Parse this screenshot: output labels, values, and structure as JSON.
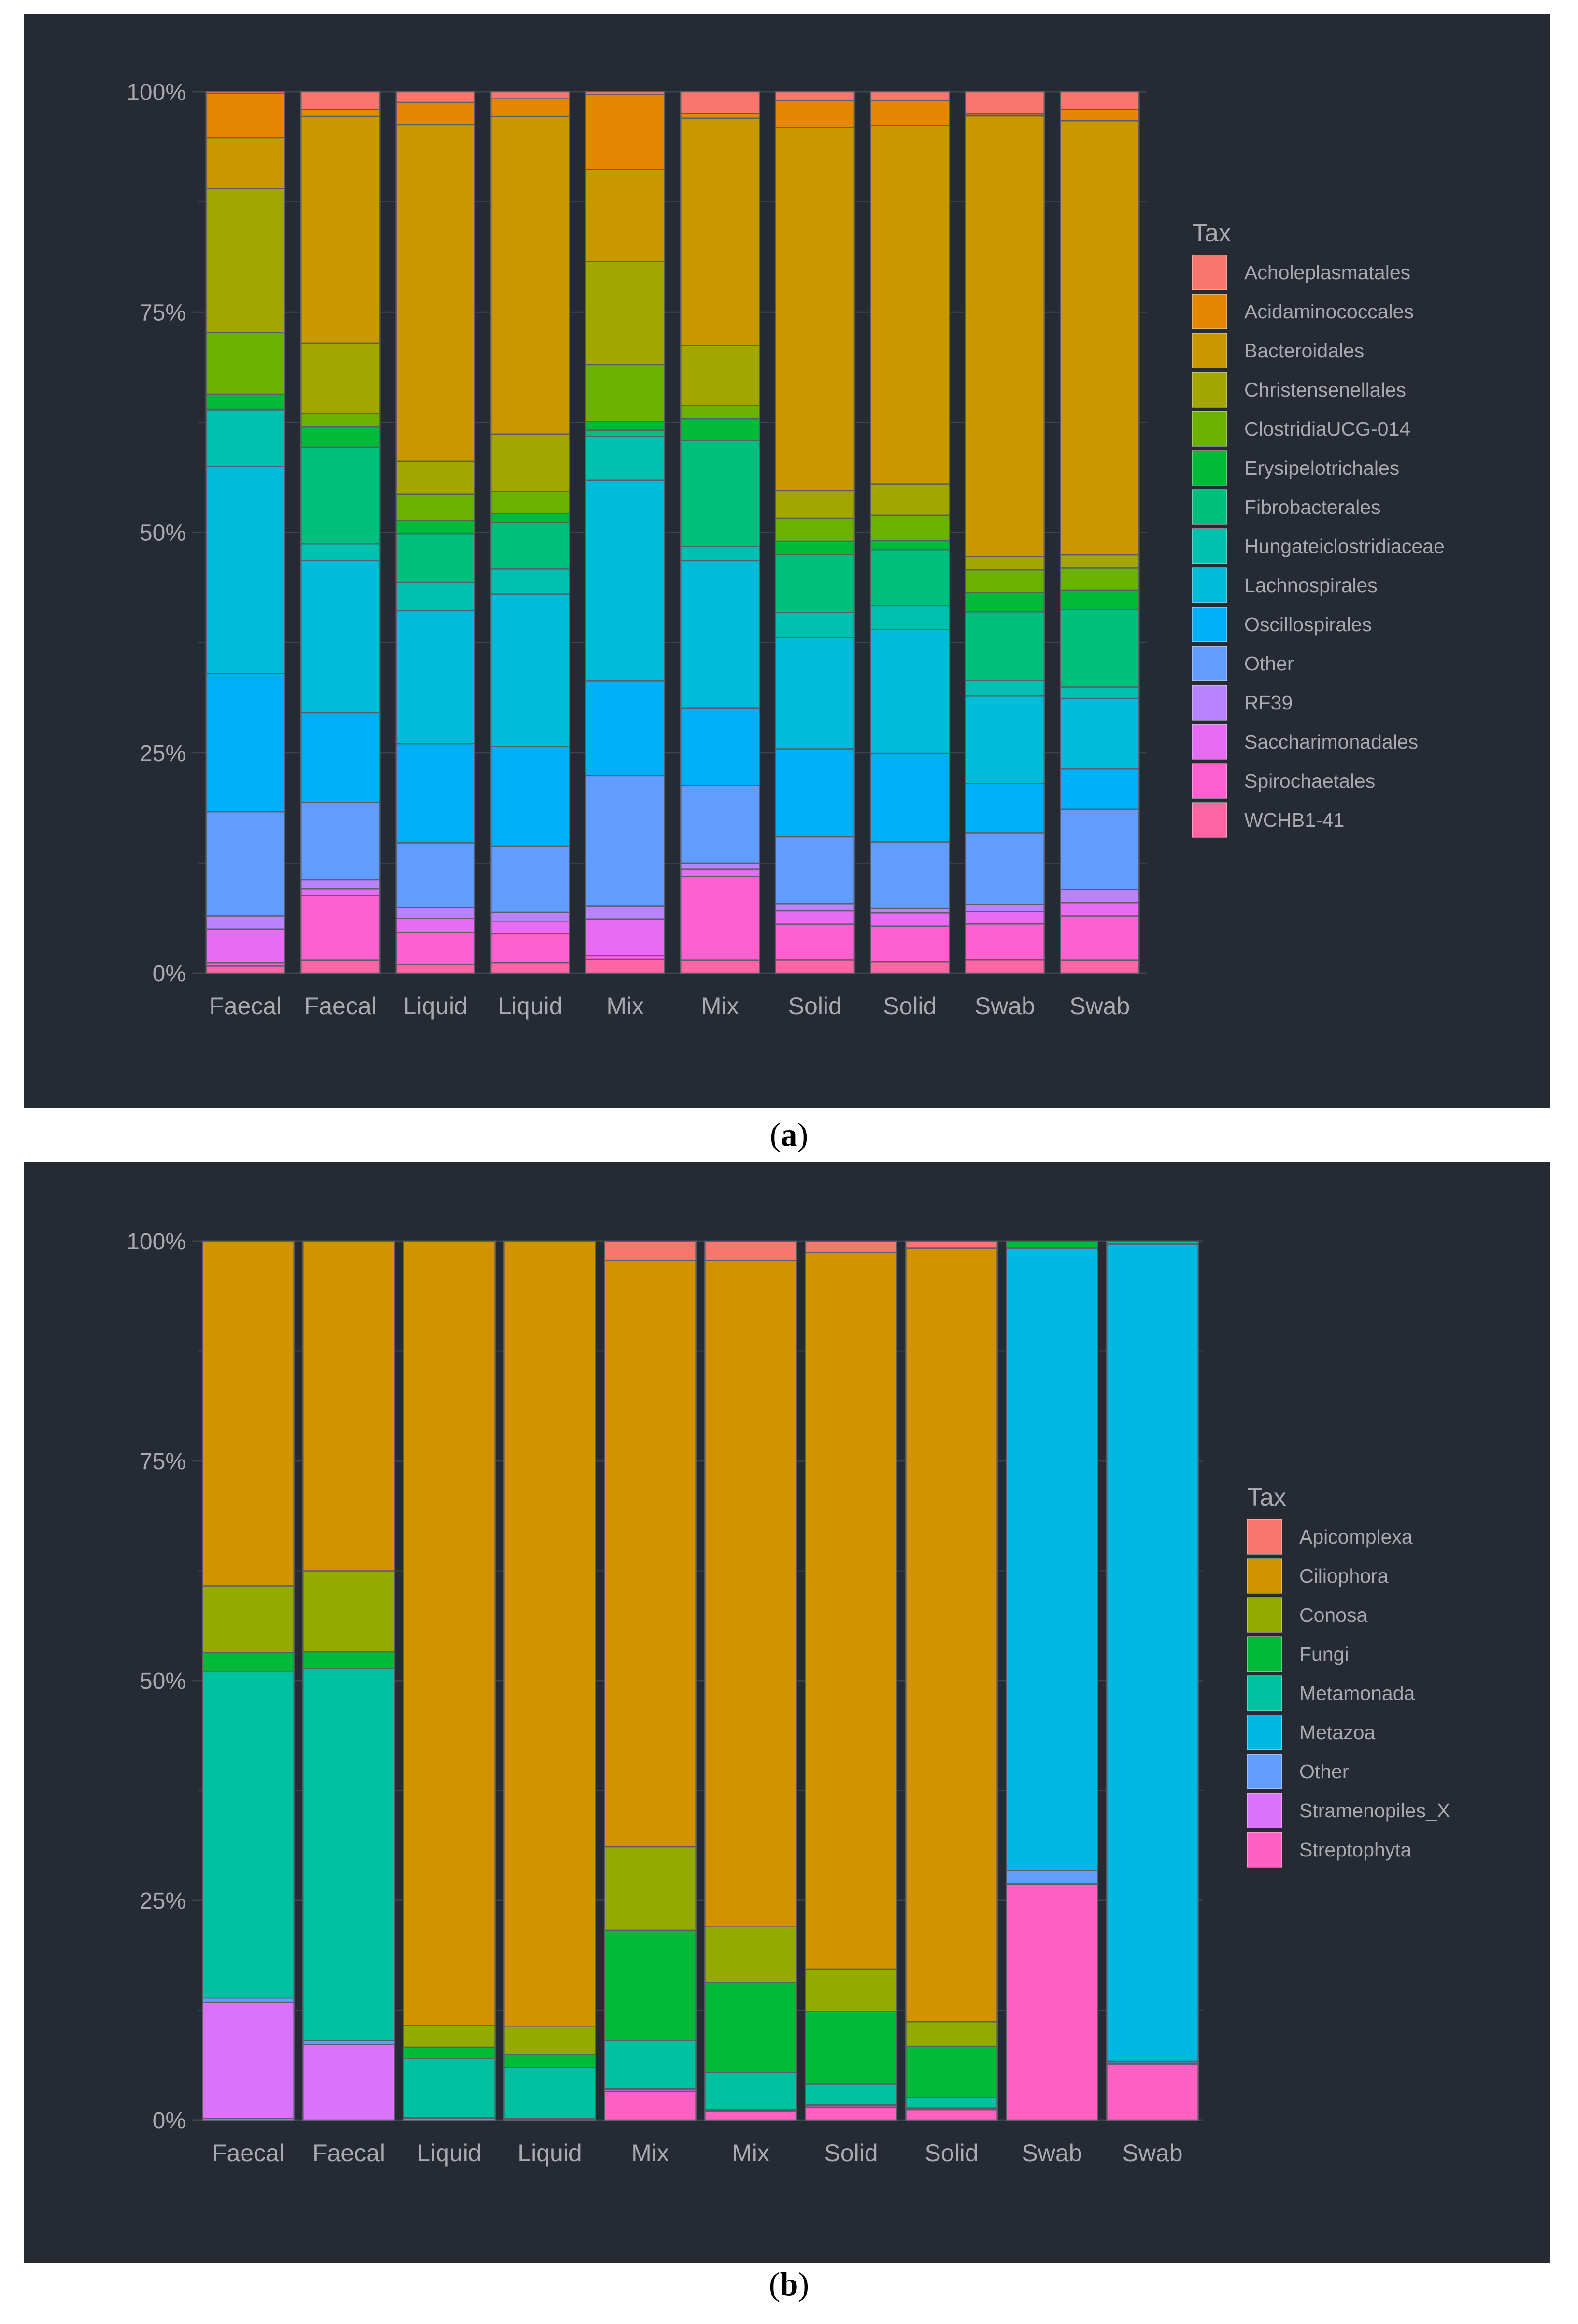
{
  "figure": {
    "captions": [
      {
        "open": "(",
        "letter": "a",
        "close": ")"
      },
      {
        "open": "(",
        "letter": "b",
        "close": ")"
      }
    ]
  },
  "colors": {
    "background": "#262a33",
    "grid": "#3d424c",
    "text": "#a7aab0",
    "bar_outline": "#5b5e66"
  },
  "chart_data": [
    {
      "type": "bar",
      "stacked": true,
      "title": "",
      "xlabel": "",
      "ylabel": "",
      "ylim": [
        0,
        100
      ],
      "y_ticks": [
        "0%",
        "25%",
        "50%",
        "75%",
        "100%"
      ],
      "categories": [
        "Faecal",
        "Faecal",
        "Liquid",
        "Liquid",
        "Mix",
        "Mix",
        "Solid",
        "Solid",
        "Swab",
        "Swab"
      ],
      "legend_title": "Tax",
      "legend_position": "right",
      "series": [
        {
          "name": "Acholeplasmatales",
          "color": "#F8766D",
          "values": [
            0.2,
            2.0,
            1.2,
            0.8,
            0.3,
            2.5,
            1.0,
            1.0,
            2.5,
            2.0
          ]
        },
        {
          "name": "Acidaminococcales",
          "color": "#E58700",
          "values": [
            5.0,
            0.8,
            2.5,
            2.0,
            8.6,
            0.5,
            3.0,
            2.8,
            0.2,
            1.3
          ]
        },
        {
          "name": "Bacteroidales",
          "color": "#C99800",
          "values": [
            5.8,
            25.8,
            38.0,
            36.0,
            10.5,
            25.8,
            40.8,
            40.5,
            49.3,
            49.3
          ]
        },
        {
          "name": "Christensenellales",
          "color": "#A3A500",
          "values": [
            16.3,
            8.0,
            3.7,
            6.5,
            11.8,
            6.8,
            3.1,
            3.5,
            1.5,
            1.5
          ]
        },
        {
          "name": "ClostridiaUCG-014",
          "color": "#6BB100",
          "values": [
            7.0,
            1.5,
            3.0,
            2.5,
            6.5,
            1.5,
            2.6,
            2.9,
            2.5,
            2.5
          ]
        },
        {
          "name": "Erysipelotrichales",
          "color": "#00BA38",
          "values": [
            1.7,
            2.3,
            1.5,
            1.0,
            1.0,
            2.5,
            1.5,
            1.0,
            2.2,
            2.2
          ]
        },
        {
          "name": "Fibrobacterales",
          "color": "#00BF7D",
          "values": [
            0.2,
            11.0,
            5.5,
            5.3,
            0.7,
            12.0,
            6.5,
            6.3,
            7.7,
            8.8
          ]
        },
        {
          "name": "Hungateiclostridiaceae",
          "color": "#00C0AF",
          "values": [
            6.3,
            1.9,
            3.2,
            2.8,
            5.0,
            1.6,
            2.8,
            2.7,
            1.7,
            1.3
          ]
        },
        {
          "name": "Lachnospirales",
          "color": "#00BCD8",
          "values": [
            23.5,
            17.3,
            15.0,
            17.3,
            23.0,
            16.7,
            12.5,
            14.0,
            9.8,
            8.0
          ]
        },
        {
          "name": "Oscillospirales",
          "color": "#00B0F6",
          "values": [
            15.7,
            10.2,
            11.2,
            11.3,
            10.8,
            8.8,
            9.9,
            10.0,
            5.5,
            4.6
          ]
        },
        {
          "name": "Other",
          "color": "#619CFF",
          "values": [
            11.8,
            8.8,
            7.3,
            7.5,
            14.9,
            8.8,
            7.5,
            7.5,
            8.0,
            9.1
          ]
        },
        {
          "name": "RF39",
          "color": "#B983FF",
          "values": [
            1.5,
            1.0,
            1.2,
            1.0,
            1.5,
            0.7,
            0.8,
            0.5,
            0.8,
            1.5
          ]
        },
        {
          "name": "Saccharimonadales",
          "color": "#E76BF3",
          "values": [
            3.8,
            0.8,
            1.6,
            1.4,
            4.2,
            0.8,
            1.5,
            1.5,
            1.4,
            1.5
          ]
        },
        {
          "name": "Spirochaetales",
          "color": "#FD61D1",
          "values": [
            0.4,
            7.3,
            3.6,
            3.3,
            0.4,
            9.5,
            4.0,
            4.0,
            4.0,
            5.0
          ]
        },
        {
          "name": "WCHB1-41",
          "color": "#FF67A4",
          "values": [
            0.8,
            1.5,
            1.0,
            1.2,
            1.6,
            1.5,
            1.5,
            1.3,
            1.5,
            1.5
          ]
        }
      ]
    },
    {
      "type": "bar",
      "stacked": true,
      "title": "",
      "xlabel": "",
      "ylabel": "",
      "ylim": [
        0,
        100
      ],
      "y_ticks": [
        "0%",
        "25%",
        "50%",
        "75%",
        "100%"
      ],
      "categories": [
        "Faecal",
        "Faecal",
        "Liquid",
        "Liquid",
        "Mix",
        "Mix",
        "Solid",
        "Solid",
        "Swab",
        "Swab"
      ],
      "legend_title": "Tax",
      "legend_position": "right",
      "series": [
        {
          "name": "Apicomplexa",
          "color": "#F8766D",
          "values": [
            0,
            0,
            0,
            0,
            2.2,
            2.2,
            1.3,
            0.8,
            0,
            0
          ]
        },
        {
          "name": "Ciliophora",
          "color": "#D39200",
          "values": [
            39.2,
            37.5,
            89.2,
            89.3,
            66.7,
            75.8,
            81.5,
            88.0,
            0,
            0
          ]
        },
        {
          "name": "Conosa",
          "color": "#93AA00",
          "values": [
            7.6,
            9.2,
            2.5,
            3.2,
            9.5,
            6.3,
            4.8,
            2.8,
            0,
            0
          ]
        },
        {
          "name": "Fungi",
          "color": "#00BA38",
          "values": [
            2.2,
            1.9,
            1.3,
            1.5,
            12.5,
            10.3,
            8.3,
            5.8,
            0.8,
            0
          ]
        },
        {
          "name": "Metamonada",
          "color": "#00C19F",
          "values": [
            37.1,
            42.3,
            6.7,
            5.8,
            5.5,
            4.2,
            2.3,
            1.2,
            0,
            0.3
          ]
        },
        {
          "name": "Metazoa",
          "color": "#00B9E3",
          "values": [
            0,
            0,
            0,
            0,
            0,
            0,
            0,
            0,
            70.8,
            93.0
          ]
        },
        {
          "name": "Other",
          "color": "#619CFF",
          "values": [
            0.5,
            0.5,
            0.1,
            0.1,
            0.1,
            0.1,
            0.1,
            0.1,
            1.5,
            0.2
          ]
        },
        {
          "name": "Stramenopiles_X",
          "color": "#DB72FB",
          "values": [
            13.2,
            8.6,
            0.2,
            0.1,
            0.2,
            0.1,
            0.2,
            0.1,
            0.1,
            0.1
          ]
        },
        {
          "name": "Streptophyta",
          "color": "#FF61C3",
          "values": [
            0.2,
            0,
            0,
            0,
            3.3,
            1.0,
            1.5,
            1.2,
            26.8,
            6.4
          ]
        }
      ]
    }
  ]
}
